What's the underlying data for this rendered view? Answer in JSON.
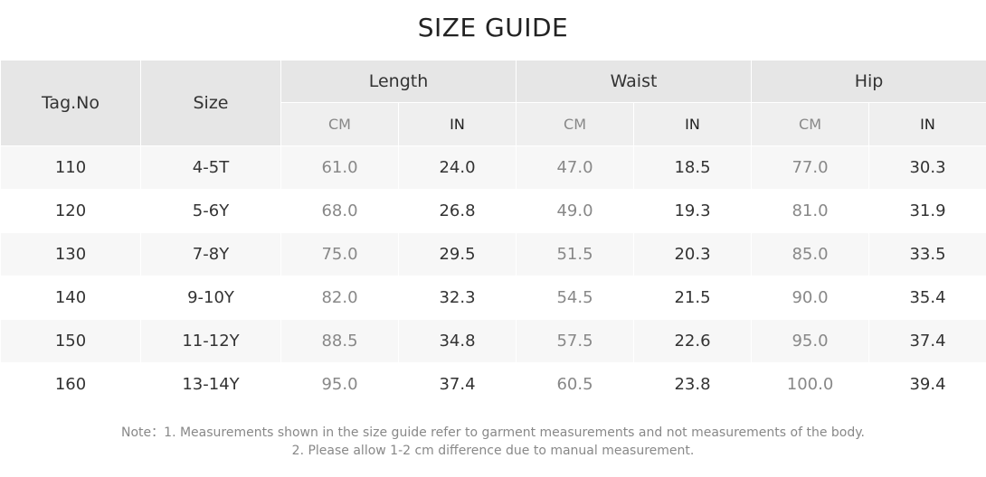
{
  "title": "SIZE GUIDE",
  "headers": {
    "tag": "Tag.No",
    "size": "Size",
    "length": "Length",
    "waist": "Waist",
    "hip": "Hip",
    "cm": "CM",
    "in": "IN"
  },
  "rows": [
    [
      "110",
      "4-5T",
      "61.0",
      "24.0",
      "47.0",
      "18.5",
      "77.0",
      "30.3"
    ],
    [
      "120",
      "5-6Y",
      "68.0",
      "26.8",
      "49.0",
      "19.3",
      "81.0",
      "31.9"
    ],
    [
      "130",
      "7-8Y",
      "75.0",
      "29.5",
      "51.5",
      "20.3",
      "85.0",
      "33.5"
    ],
    [
      "140",
      "9-10Y",
      "82.0",
      "32.3",
      "54.5",
      "21.5",
      "90.0",
      "35.4"
    ],
    [
      "150",
      "11-12Y",
      "88.5",
      "34.8",
      "57.5",
      "22.6",
      "95.0",
      "37.4"
    ],
    [
      "160",
      "13-14Y",
      "95.0",
      "37.4",
      "60.5",
      "23.8",
      "100.0",
      "39.4"
    ]
  ],
  "note": {
    "line1": "Note：1. Measurements shown in the size guide refer to garment measurements and not measurements of the body.",
    "line2": "2. Please allow 1-2 cm difference due to manual measurement."
  }
}
